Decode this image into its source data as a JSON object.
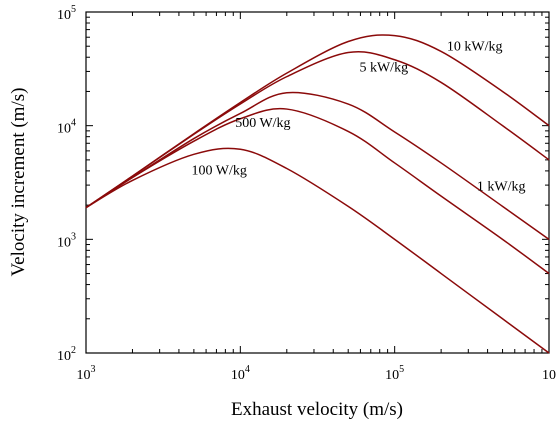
{
  "chart_data": {
    "type": "line",
    "title": "",
    "xlabel": "Exhaust velocity (m/s)",
    "ylabel": "Velocity increment (m/s)",
    "xscale": "log",
    "yscale": "log",
    "xlim": [
      1000,
      1000000
    ],
    "ylim": [
      100,
      100000
    ],
    "grid": false,
    "legend": "labels placed next to curves",
    "line_color": "#8b0a0a",
    "x_ticks": [
      {
        "base": "10",
        "exp": "3"
      },
      {
        "base": "10",
        "exp": "4"
      },
      {
        "base": "10",
        "exp": "5"
      },
      {
        "base": "10",
        "exp": ""
      }
    ],
    "y_ticks": [
      {
        "base": "10",
        "exp": "2"
      },
      {
        "base": "10",
        "exp": "3"
      },
      {
        "base": "10",
        "exp": "4"
      },
      {
        "base": "10",
        "exp": "5"
      }
    ],
    "x": [
      1000,
      2000,
      5000,
      10000,
      20000,
      50000,
      100000,
      200000,
      500000,
      1000000
    ],
    "series": [
      {
        "name": "10 kW/kg",
        "values": [
          1900,
          3600,
          8500,
          16000,
          29000,
          55000,
          62000,
          45000,
          20000,
          10000
        ]
      },
      {
        "name": "5 kW/kg",
        "values": [
          1900,
          3600,
          8400,
          15500,
          27000,
          44000,
          38000,
          24000,
          10000,
          5000
        ]
      },
      {
        "name": "1 kW/kg",
        "values": [
          1900,
          3500,
          7700,
          12800,
          19500,
          15500,
          8800,
          4700,
          1950,
          1000
        ]
      },
      {
        "name": "500 W/kg",
        "values": [
          1900,
          3500,
          7300,
          11500,
          14000,
          8900,
          4700,
          2400,
          1000,
          500
        ]
      },
      {
        "name": "100 W/kg",
        "values": [
          1900,
          3300,
          5600,
          6200,
          4200,
          1950,
          1000,
          500,
          200,
          100
        ]
      }
    ]
  }
}
